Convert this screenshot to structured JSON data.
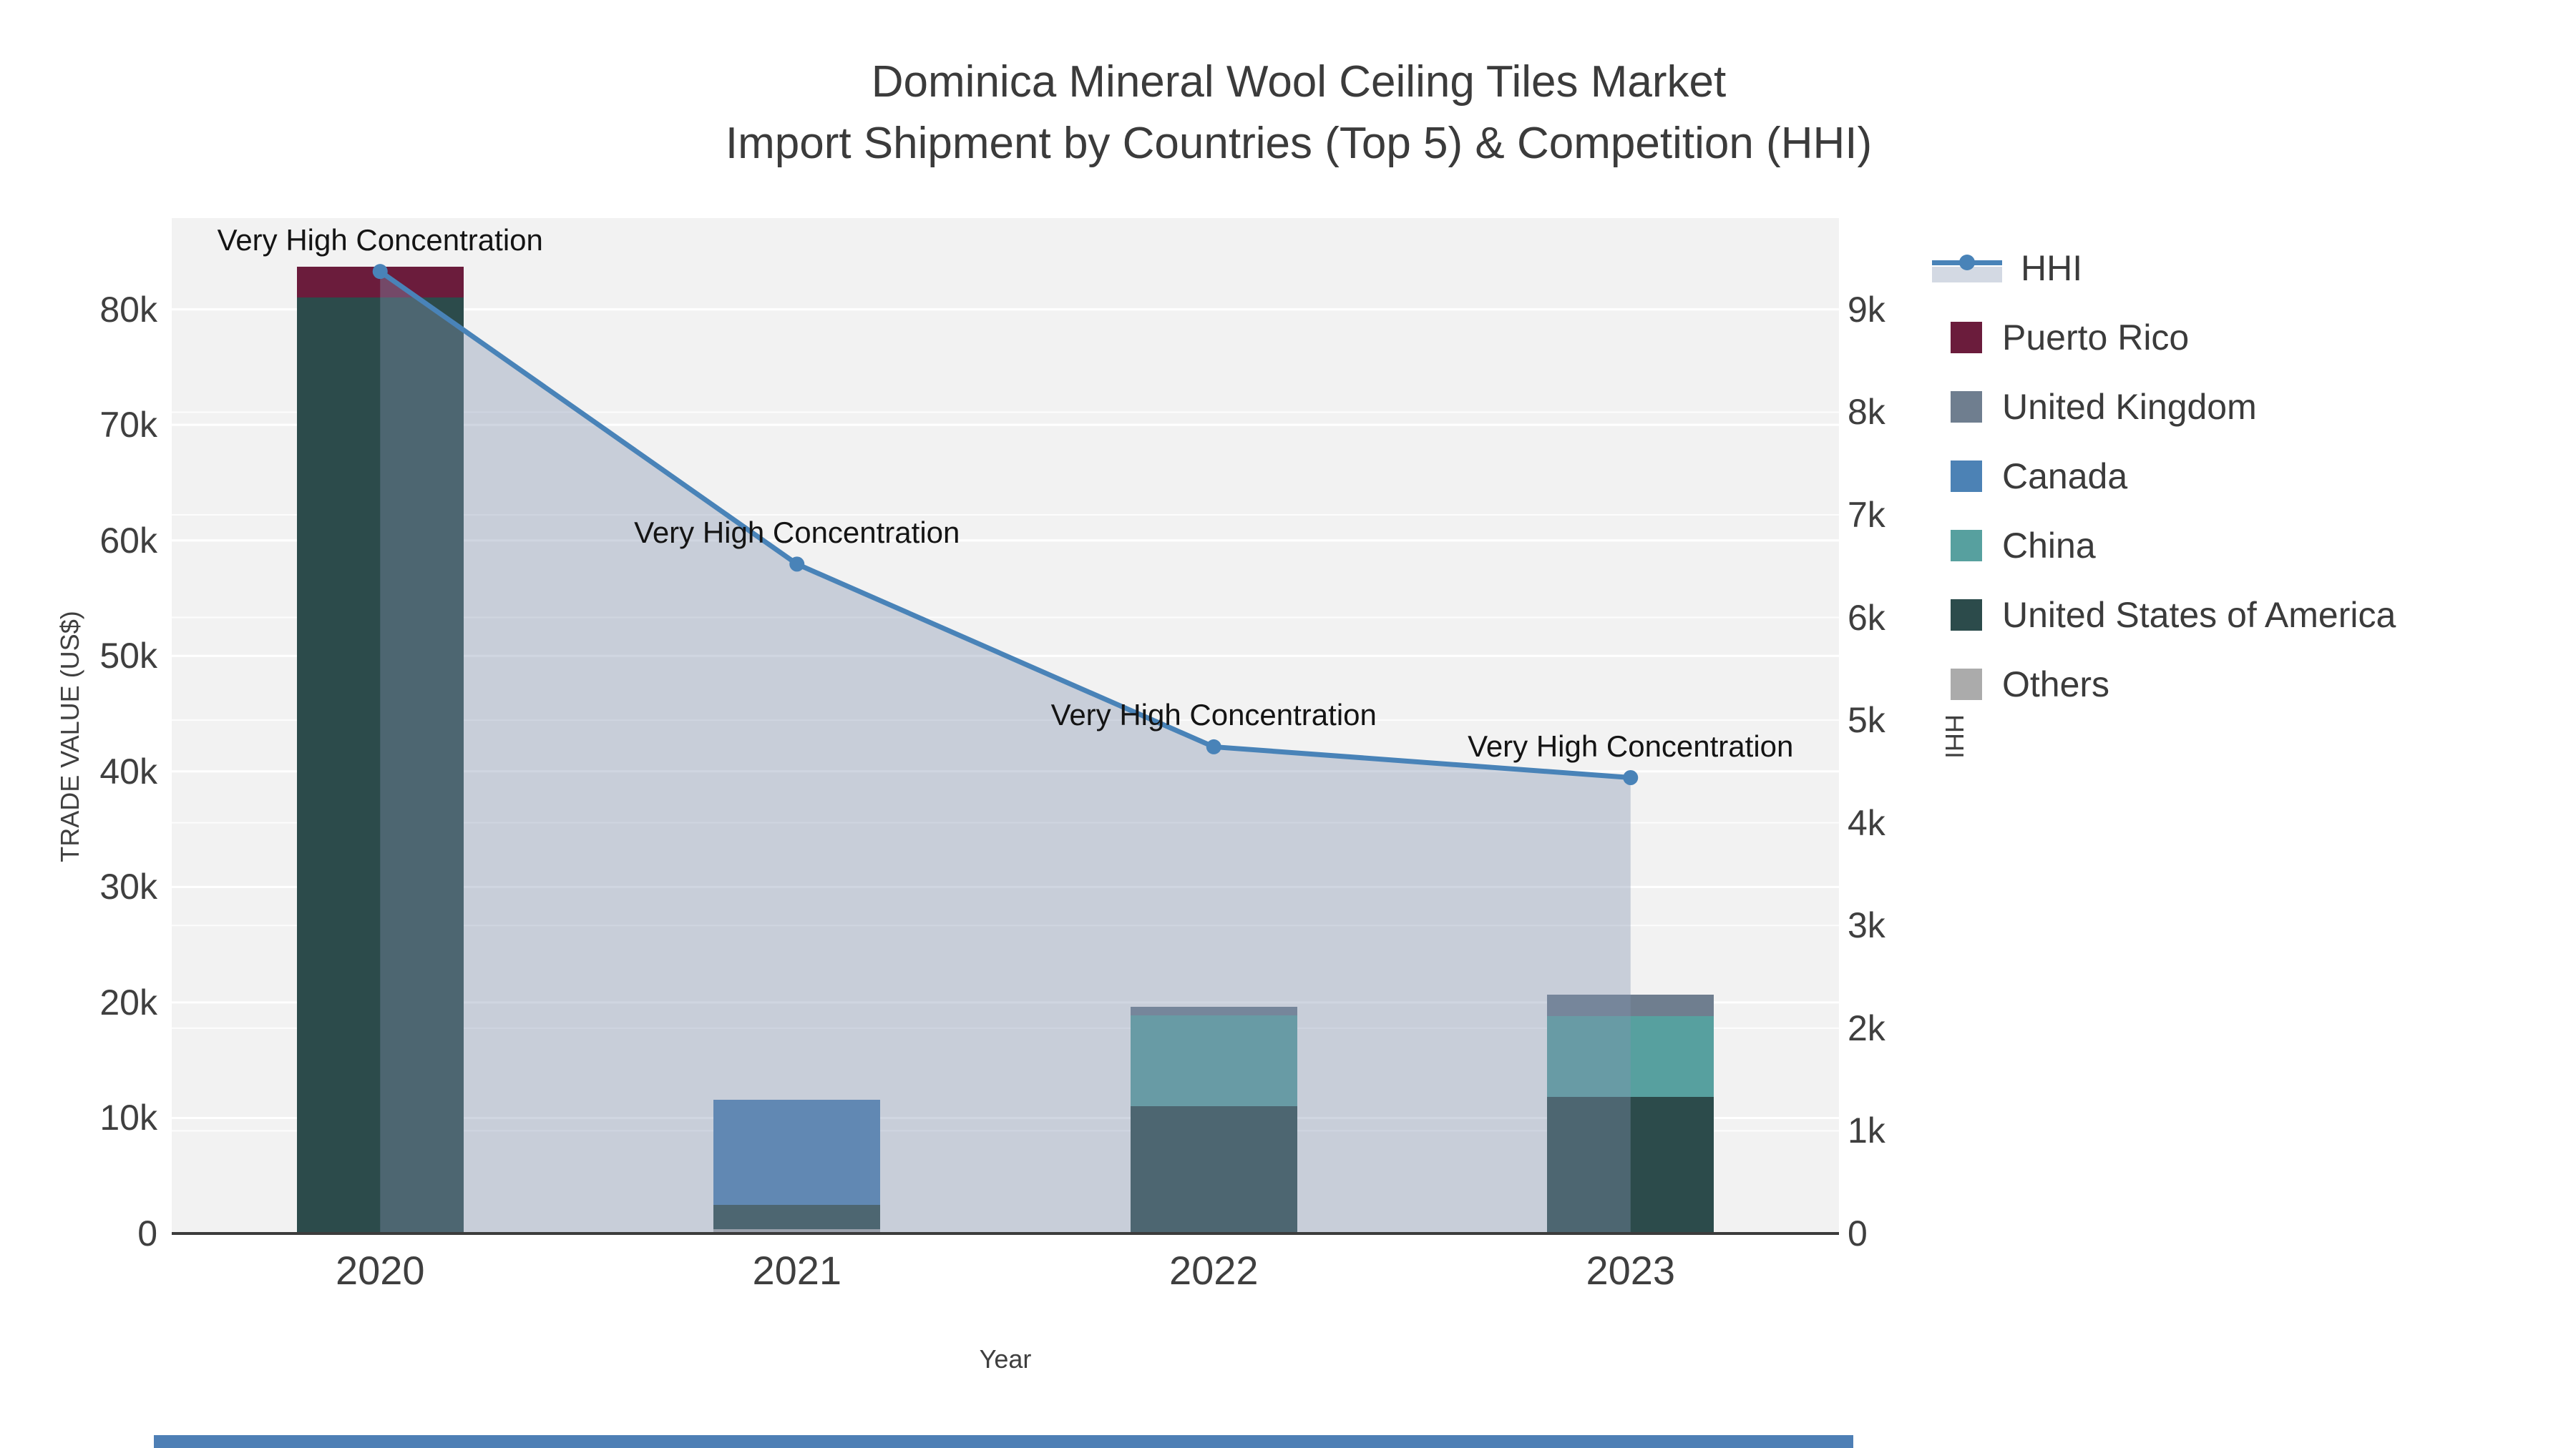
{
  "title": {
    "line1": "Dominica Mineral Wool Ceiling Tiles Market",
    "line2": "Import Shipment by Countries (Top 5) & Competition (HHI)"
  },
  "axes": {
    "x": {
      "title": "Year",
      "tick_labels": [
        "2020",
        "2021",
        "2022",
        "2023"
      ]
    },
    "y_left": {
      "title": "TRADE VALUE (US$)",
      "tick_labels": [
        "0",
        "10k",
        "20k",
        "30k",
        "40k",
        "50k",
        "60k",
        "70k",
        "80k"
      ],
      "tick_step": 10000,
      "axis_max": 87900
    },
    "y_right": {
      "title": "HHI",
      "tick_labels": [
        "0",
        "1k",
        "2k",
        "3k",
        "4k",
        "5k",
        "6k",
        "7k",
        "8k",
        "9k"
      ],
      "tick_step": 1000,
      "axis_max": 9890
    }
  },
  "legend": [
    {
      "label": "HHI",
      "color": "#4983b8",
      "sample": "line-area"
    },
    {
      "label": "Puerto Rico",
      "color": "#6b1c3c",
      "sample": "swatch"
    },
    {
      "label": "United Kingdom",
      "color": "#6f7e8f",
      "sample": "swatch"
    },
    {
      "label": "Canada",
      "color": "#4c82b5",
      "sample": "swatch"
    },
    {
      "label": "China",
      "color": "#57a09f",
      "sample": "swatch"
    },
    {
      "label": "United States of America",
      "color": "#2c4b4b",
      "sample": "swatch"
    },
    {
      "label": "Others",
      "color": "#ababab",
      "sample": "swatch"
    }
  ],
  "chart_data": {
    "type": "bar-stacked + line-area (dual axis)",
    "categories": [
      "2020",
      "2021",
      "2022",
      "2023"
    ],
    "bar_unit": "US$",
    "series": [
      {
        "name": "Puerto Rico",
        "type": "bar",
        "axis": "left",
        "color": "#6b1c3c",
        "values": [
          2700,
          0,
          0,
          0
        ]
      },
      {
        "name": "United Kingdom",
        "type": "bar",
        "axis": "left",
        "color": "#6f7e8f",
        "values": [
          0,
          0,
          700,
          1900
        ]
      },
      {
        "name": "Canada",
        "type": "bar",
        "axis": "left",
        "color": "#4c82b5",
        "values": [
          0,
          9100,
          0,
          0
        ]
      },
      {
        "name": "China",
        "type": "bar",
        "axis": "left",
        "color": "#57a09f",
        "values": [
          0,
          0,
          7900,
          7000
        ]
      },
      {
        "name": "United States of America",
        "type": "bar",
        "axis": "left",
        "color": "#2c4b4b",
        "values": [
          81000,
          2100,
          11000,
          11800
        ]
      },
      {
        "name": "Others",
        "type": "bar",
        "axis": "left",
        "color": "#ababab",
        "values": [
          0,
          400,
          0,
          0
        ]
      },
      {
        "name": "HHI",
        "type": "line-area",
        "axis": "right",
        "color": "#4983b8",
        "fill_color": "rgba(131,148,176,0.38)",
        "values": [
          9370,
          6520,
          4740,
          4440
        ]
      }
    ],
    "stack_order_bottom_to_top": [
      "Others",
      "United States of America",
      "China",
      "Canada",
      "United Kingdom",
      "Puerto Rico"
    ],
    "bar_totals": [
      83700,
      11600,
      19600,
      20700
    ],
    "annotation_text": "Very High Concentration",
    "annotated_points": [
      true,
      true,
      true,
      true
    ],
    "plot_background": "#f2f2f2",
    "gridline_color": "#ffffff",
    "axis_line_color": "#3c3c3c",
    "legend_position": "right",
    "bottom_strip_color": "#4e7fb5"
  }
}
